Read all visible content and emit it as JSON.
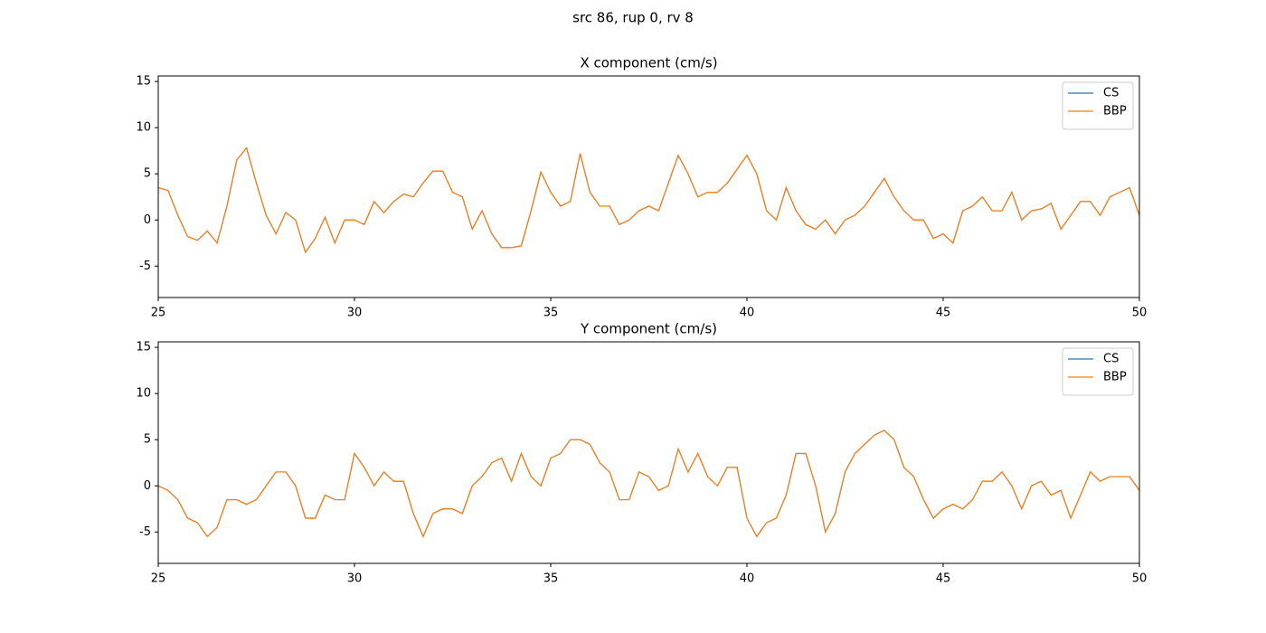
{
  "suptitle": "src 86, rup 0, rv 8",
  "chart_data": [
    {
      "type": "line",
      "title": "X component (cm/s)",
      "legend": "upper right",
      "xlim": [
        25,
        50
      ],
      "xticks": [
        25,
        30,
        35,
        40,
        45,
        50
      ],
      "ylim": [
        -8.4,
        15.6
      ],
      "yticks": [
        -5,
        0,
        5,
        10,
        15
      ],
      "x": [
        25,
        25.25,
        25.5,
        25.75,
        26,
        26.25,
        26.5,
        26.75,
        27,
        27.25,
        27.5,
        27.75,
        28,
        28.25,
        28.5,
        28.75,
        29,
        29.25,
        29.5,
        29.75,
        30,
        30.25,
        30.5,
        30.75,
        31,
        31.25,
        31.5,
        31.75,
        32,
        32.25,
        32.5,
        32.75,
        33,
        33.25,
        33.5,
        33.75,
        34,
        34.25,
        34.5,
        34.75,
        35,
        35.25,
        35.5,
        35.75,
        36,
        36.25,
        36.5,
        36.75,
        37,
        37.25,
        37.5,
        37.75,
        38,
        38.25,
        38.5,
        38.75,
        39,
        39.25,
        39.5,
        39.75,
        40,
        40.25,
        40.5,
        40.75,
        41,
        41.25,
        41.5,
        41.75,
        42,
        42.25,
        42.5,
        42.75,
        43,
        43.25,
        43.5,
        43.75,
        44,
        44.25,
        44.5,
        44.75,
        45,
        45.25,
        45.5,
        45.75,
        46,
        46.25,
        46.5,
        46.75,
        47,
        47.25,
        47.5,
        47.75,
        48,
        48.25,
        48.5,
        48.75,
        49,
        49.25,
        49.5,
        49.75,
        50
      ],
      "series": [
        {
          "name": "CS",
          "color": "#1f77b4",
          "values": [
            3.5,
            3.2,
            0.5,
            -1.8,
            -2.2,
            -1.2,
            -2.5,
            1.5,
            6.5,
            7.8,
            4,
            0.5,
            -1.5,
            0.8,
            0,
            -3.5,
            -2,
            0.3,
            -2.5,
            0,
            0,
            -0.5,
            2,
            0.8,
            2,
            2.8,
            2.5,
            4,
            5.3,
            5.3,
            3,
            2.5,
            -1,
            1,
            -1.5,
            -3,
            -3,
            -2.8,
            1,
            5.2,
            3,
            1.5,
            2,
            7.2,
            3,
            1.5,
            1.5,
            -0.5,
            0,
            1,
            1.5,
            1,
            4,
            7,
            5,
            2.5,
            3,
            3,
            4,
            5.5,
            7,
            5,
            1,
            0,
            3.5,
            1,
            -0.5,
            -1,
            0,
            -1.5,
            0,
            0.5,
            1.5,
            3,
            4.5,
            2.5,
            1,
            0,
            0,
            -2,
            -1.5,
            -2.5,
            1,
            1.5,
            2.5,
            1,
            1,
            3,
            0,
            1,
            1.2,
            1.8,
            -1,
            0.5,
            2,
            2,
            0.5,
            2.5,
            3,
            3.5,
            0.5
          ]
        },
        {
          "name": "BBP",
          "color": "#ff7f0e",
          "values": [
            3.5,
            3.2,
            0.5,
            -1.8,
            -2.2,
            -1.2,
            -2.5,
            1.5,
            6.5,
            7.8,
            4,
            0.5,
            -1.5,
            0.8,
            0,
            -3.5,
            -2,
            0.3,
            -2.5,
            0,
            0,
            -0.5,
            2,
            0.8,
            2,
            2.8,
            2.5,
            4,
            5.3,
            5.3,
            3,
            2.5,
            -1,
            1,
            -1.5,
            -3,
            -3,
            -2.8,
            1,
            5.2,
            3,
            1.5,
            2,
            7.2,
            3,
            1.5,
            1.5,
            -0.5,
            0,
            1,
            1.5,
            1,
            4,
            7,
            5,
            2.5,
            3,
            3,
            4,
            5.5,
            7,
            5,
            1,
            0,
            3.5,
            1,
            -0.5,
            -1,
            0,
            -1.5,
            0,
            0.5,
            1.5,
            3,
            4.5,
            2.5,
            1,
            0,
            0,
            -2,
            -1.5,
            -2.5,
            1,
            1.5,
            2.5,
            1,
            1,
            3,
            0,
            1,
            1.2,
            1.8,
            -1,
            0.5,
            2,
            2,
            0.5,
            2.5,
            3,
            3.5,
            0.5
          ]
        }
      ]
    },
    {
      "type": "line",
      "title": "Y component (cm/s)",
      "legend": "upper right",
      "xlim": [
        25,
        50
      ],
      "xticks": [
        25,
        30,
        35,
        40,
        45,
        50
      ],
      "ylim": [
        -8.4,
        15.6
      ],
      "yticks": [
        -5,
        0,
        5,
        10,
        15
      ],
      "x": [
        25,
        25.25,
        25.5,
        25.75,
        26,
        26.25,
        26.5,
        26.75,
        27,
        27.25,
        27.5,
        27.75,
        28,
        28.25,
        28.5,
        28.75,
        29,
        29.25,
        29.5,
        29.75,
        30,
        30.25,
        30.5,
        30.75,
        31,
        31.25,
        31.5,
        31.75,
        32,
        32.25,
        32.5,
        32.75,
        33,
        33.25,
        33.5,
        33.75,
        34,
        34.25,
        34.5,
        34.75,
        35,
        35.25,
        35.5,
        35.75,
        36,
        36.25,
        36.5,
        36.75,
        37,
        37.25,
        37.5,
        37.75,
        38,
        38.25,
        38.5,
        38.75,
        39,
        39.25,
        39.5,
        39.75,
        40,
        40.25,
        40.5,
        40.75,
        41,
        41.25,
        41.5,
        41.75,
        42,
        42.25,
        42.5,
        42.75,
        43,
        43.25,
        43.5,
        43.75,
        44,
        44.25,
        44.5,
        44.75,
        45,
        45.25,
        45.5,
        45.75,
        46,
        46.25,
        46.5,
        46.75,
        47,
        47.25,
        47.5,
        47.75,
        48,
        48.25,
        48.5,
        48.75,
        49,
        49.25,
        49.5,
        49.75,
        50
      ],
      "series": [
        {
          "name": "CS",
          "color": "#1f77b4",
          "values": [
            0,
            -0.5,
            -1.5,
            -3.5,
            -4,
            -5.5,
            -4.5,
            -1.5,
            -1.5,
            -2,
            -1.5,
            0,
            1.5,
            1.5,
            0,
            -3.5,
            -3.5,
            -1,
            -1.5,
            -1.5,
            3.5,
            2,
            0,
            1.5,
            0.5,
            0.5,
            -3,
            -5.5,
            -3,
            -2.5,
            -2.5,
            -3,
            0,
            1,
            2.5,
            3,
            0.5,
            3.5,
            1,
            0,
            3,
            3.5,
            5,
            5,
            4.5,
            2.5,
            1.5,
            -1.5,
            -1.5,
            1.5,
            1,
            -0.5,
            0,
            4,
            1.5,
            3.5,
            1,
            0,
            2,
            2,
            -3.5,
            -5.5,
            -4,
            -3.5,
            -1,
            3.5,
            3.5,
            0,
            -5,
            -3,
            1.5,
            3.5,
            4.5,
            5.5,
            6,
            5,
            2,
            1,
            -1.5,
            -3.5,
            -2.5,
            -2,
            -2.5,
            -1.5,
            0.5,
            0.5,
            1.5,
            0,
            -2.5,
            0,
            0.5,
            -1,
            -0.5,
            -3.5,
            -1,
            1.5,
            0.5,
            1,
            1,
            1,
            -0.5
          ]
        },
        {
          "name": "BBP",
          "color": "#ff7f0e",
          "values": [
            0,
            -0.5,
            -1.5,
            -3.5,
            -4,
            -5.5,
            -4.5,
            -1.5,
            -1.5,
            -2,
            -1.5,
            0,
            1.5,
            1.5,
            0,
            -3.5,
            -3.5,
            -1,
            -1.5,
            -1.5,
            3.5,
            2,
            0,
            1.5,
            0.5,
            0.5,
            -3,
            -5.5,
            -3,
            -2.5,
            -2.5,
            -3,
            0,
            1,
            2.5,
            3,
            0.5,
            3.5,
            1,
            0,
            3,
            3.5,
            5,
            5,
            4.5,
            2.5,
            1.5,
            -1.5,
            -1.5,
            1.5,
            1,
            -0.5,
            0,
            4,
            1.5,
            3.5,
            1,
            0,
            2,
            2,
            -3.5,
            -5.5,
            -4,
            -3.5,
            -1,
            3.5,
            3.5,
            0,
            -5,
            -3,
            1.5,
            3.5,
            4.5,
            5.5,
            6,
            5,
            2,
            1,
            -1.5,
            -3.5,
            -2.5,
            -2,
            -2.5,
            -1.5,
            0.5,
            0.5,
            1.5,
            0,
            -2.5,
            0,
            0.5,
            -1,
            -0.5,
            -3.5,
            -1,
            1.5,
            0.5,
            1,
            1,
            1,
            -0.5
          ]
        }
      ]
    }
  ]
}
